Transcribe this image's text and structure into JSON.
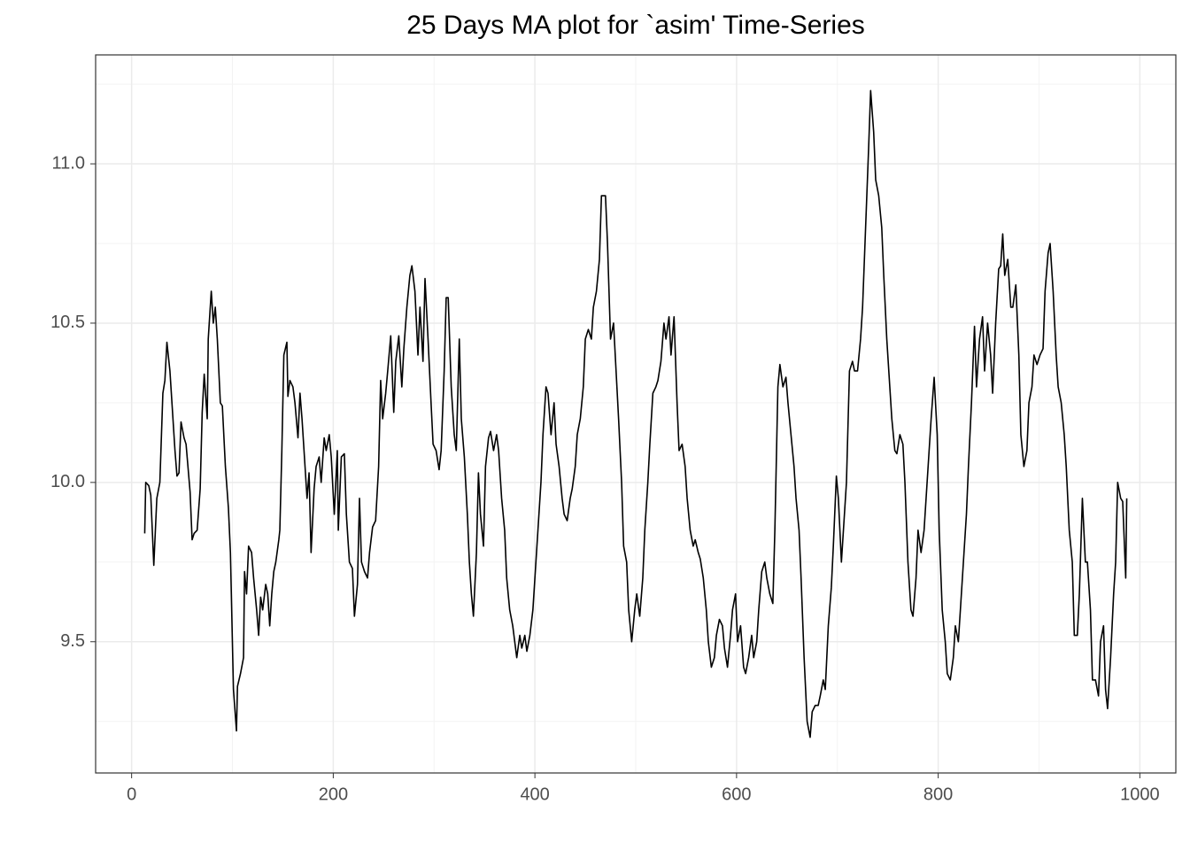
{
  "chart_data": {
    "type": "line",
    "title": "25 Days MA plot for `asim' Time-Series",
    "xlim": [
      -35.7,
      1035.7
    ],
    "ylim": [
      9.088,
      11.342
    ],
    "xticks": [
      0,
      200,
      400,
      600,
      800,
      1000
    ],
    "yticks": [
      9.5,
      {
        "value": 10,
        "label": "10.0"
      },
      10.5,
      {
        "value": 11,
        "label": "11.0"
      }
    ],
    "xminorticks": [
      100,
      300,
      500,
      700,
      900
    ],
    "yminorticks": [
      9.25,
      9.75,
      10.25,
      10.75,
      11.25
    ],
    "grid": true,
    "series": [
      {
        "color": "#000000",
        "x": [
          13,
          14,
          17,
          19,
          22,
          25,
          28,
          31,
          33,
          35,
          38,
          40,
          43,
          45,
          47,
          49,
          52,
          54,
          58,
          60,
          62,
          65,
          68,
          70,
          72,
          75,
          76,
          79,
          81,
          83,
          85,
          88,
          90,
          93,
          96,
          98,
          101,
          104,
          105,
          108,
          111,
          112,
          114,
          116,
          119,
          121,
          124,
          126,
          128,
          130,
          133,
          135,
          137,
          139,
          141,
          143,
          146,
          147,
          149,
          151,
          154,
          155,
          157,
          160,
          162,
          165,
          167,
          169,
          172,
          174,
          176,
          178,
          181,
          183,
          186,
          188,
          191,
          193,
          196,
          198,
          201,
          204,
          205,
          208,
          211,
          213,
          216,
          219,
          221,
          224,
          226,
          228,
          231,
          234,
          236,
          239,
          242,
          245,
          247,
          249,
          252,
          254,
          257,
          260,
          262,
          265,
          268,
          270,
          273,
          276,
          278,
          281,
          284,
          286,
          289,
          291,
          294,
          297,
          299,
          302,
          305,
          307,
          310,
          312,
          314,
          317,
          320,
          322,
          325,
          327,
          330,
          333,
          335,
          337,
          339,
          342,
          344,
          346,
          349,
          351,
          354,
          356,
          359,
          362,
          364,
          367,
          370,
          372,
          375,
          378,
          380,
          382,
          385,
          387,
          390,
          392,
          395,
          398,
          400,
          403,
          406,
          408,
          411,
          413,
          416,
          419,
          421,
          424,
          427,
          429,
          432,
          435,
          437,
          440,
          442,
          445,
          448,
          450,
          453,
          456,
          458,
          461,
          464,
          466,
          470,
          472,
          475,
          478,
          480,
          483,
          486,
          488,
          491,
          493,
          496,
          499,
          501,
          504,
          507,
          509,
          512,
          514,
          517,
          520,
          522,
          525,
          528,
          530,
          533,
          535,
          538,
          541,
          543,
          546,
          549,
          551,
          554,
          557,
          559,
          562,
          564,
          567,
          570,
          572,
          575,
          578,
          580,
          583,
          586,
          588,
          591,
          594,
          596,
          599,
          601,
          604,
          607,
          609,
          612,
          615,
          617,
          620,
          622,
          625,
          628,
          630,
          633,
          636,
          638,
          641,
          643,
          646,
          649,
          651,
          654,
          657,
          659,
          662,
          664,
          667,
          670,
          673,
          675,
          678,
          681,
          683,
          686,
          688,
          691,
          694,
          696,
          699,
          701,
          704,
          707,
          709,
          712,
          715,
          717,
          720,
          723,
          725,
          728,
          731,
          733,
          736,
          738,
          741,
          744,
          746,
          749,
          752,
          754,
          757,
          759,
          762,
          765,
          767,
          770,
          773,
          775,
          778,
          780,
          783,
          786,
          788,
          791,
          793,
          796,
          799,
          801,
          804,
          807,
          809,
          812,
          815,
          817,
          820,
          822,
          825,
          828,
          830,
          833,
          836,
          838,
          841,
          844,
          846,
          849,
          852,
          854,
          857,
          860,
          862,
          864,
          866,
          869,
          872,
          874,
          877,
          880,
          882,
          885,
          888,
          890,
          893,
          895,
          898,
          901,
          904,
          906,
          909,
          911,
          914,
          917,
          919,
          922,
          925,
          927,
          930,
          933,
          935,
          938,
          940,
          943,
          946,
          948,
          951,
          953,
          956,
          959,
          961,
          964,
          966,
          968,
          971,
          974,
          976,
          978,
          981,
          983,
          986,
          987
        ],
        "values": [
          9.84,
          10.0,
          9.99,
          9.96,
          9.74,
          9.95,
          10.0,
          10.28,
          10.32,
          10.44,
          10.35,
          10.25,
          10.1,
          10.02,
          10.03,
          10.19,
          10.14,
          10.12,
          9.97,
          9.82,
          9.84,
          9.85,
          9.98,
          10.22,
          10.34,
          10.2,
          10.45,
          10.6,
          10.5,
          10.55,
          10.45,
          10.25,
          10.24,
          10.05,
          9.92,
          9.78,
          9.35,
          9.22,
          9.36,
          9.4,
          9.45,
          9.72,
          9.65,
          9.8,
          9.78,
          9.7,
          9.6,
          9.52,
          9.64,
          9.6,
          9.68,
          9.65,
          9.55,
          9.65,
          9.72,
          9.75,
          9.82,
          9.85,
          10.1,
          10.4,
          10.44,
          10.27,
          10.32,
          10.3,
          10.25,
          10.14,
          10.28,
          10.2,
          10.05,
          9.95,
          10.03,
          9.78,
          9.98,
          10.05,
          10.08,
          10.0,
          10.14,
          10.1,
          10.15,
          10.08,
          9.9,
          10.1,
          9.85,
          10.08,
          10.09,
          9.9,
          9.75,
          9.73,
          9.58,
          9.68,
          9.95,
          9.75,
          9.72,
          9.7,
          9.78,
          9.86,
          9.88,
          10.05,
          10.32,
          10.2,
          10.28,
          10.35,
          10.46,
          10.22,
          10.38,
          10.46,
          10.3,
          10.42,
          10.55,
          10.65,
          10.68,
          10.6,
          10.4,
          10.55,
          10.38,
          10.64,
          10.45,
          10.25,
          10.12,
          10.1,
          10.04,
          10.1,
          10.35,
          10.58,
          10.58,
          10.3,
          10.15,
          10.1,
          10.45,
          10.2,
          10.08,
          9.9,
          9.75,
          9.65,
          9.58,
          9.78,
          10.03,
          9.9,
          9.8,
          10.05,
          10.14,
          10.16,
          10.1,
          10.15,
          10.1,
          9.95,
          9.85,
          9.7,
          9.6,
          9.55,
          9.5,
          9.45,
          9.52,
          9.48,
          9.52,
          9.47,
          9.52,
          9.6,
          9.7,
          9.85,
          10.0,
          10.15,
          10.3,
          10.28,
          10.15,
          10.25,
          10.12,
          10.05,
          9.95,
          9.9,
          9.88,
          9.95,
          9.98,
          10.05,
          10.15,
          10.2,
          10.3,
          10.45,
          10.48,
          10.45,
          10.55,
          10.6,
          10.7,
          10.9,
          10.9,
          10.75,
          10.45,
          10.5,
          10.38,
          10.2,
          10.0,
          9.8,
          9.75,
          9.6,
          9.5,
          9.6,
          9.65,
          9.58,
          9.7,
          9.85,
          10.0,
          10.12,
          10.28,
          10.3,
          10.32,
          10.38,
          10.5,
          10.45,
          10.52,
          10.4,
          10.52,
          10.25,
          10.1,
          10.12,
          10.05,
          9.95,
          9.85,
          9.8,
          9.82,
          9.78,
          9.76,
          9.7,
          9.6,
          9.5,
          9.42,
          9.45,
          9.52,
          9.57,
          9.55,
          9.48,
          9.42,
          9.52,
          9.6,
          9.65,
          9.5,
          9.55,
          9.42,
          9.4,
          9.45,
          9.52,
          9.45,
          9.5,
          9.6,
          9.72,
          9.75,
          9.7,
          9.65,
          9.62,
          9.85,
          10.3,
          10.37,
          10.3,
          10.33,
          10.25,
          10.15,
          10.05,
          9.95,
          9.85,
          9.7,
          9.45,
          9.25,
          9.2,
          9.28,
          9.3,
          9.3,
          9.33,
          9.38,
          9.35,
          9.55,
          9.67,
          9.8,
          10.02,
          9.95,
          9.75,
          9.9,
          10.0,
          10.35,
          10.38,
          10.35,
          10.35,
          10.45,
          10.55,
          10.8,
          11.05,
          11.23,
          11.1,
          10.95,
          10.9,
          10.8,
          10.65,
          10.45,
          10.3,
          10.2,
          10.1,
          10.09,
          10.15,
          10.12,
          10.0,
          9.75,
          9.6,
          9.58,
          9.7,
          9.85,
          9.78,
          9.85,
          9.95,
          10.1,
          10.2,
          10.33,
          10.15,
          9.85,
          9.6,
          9.5,
          9.4,
          9.38,
          9.45,
          9.55,
          9.5,
          9.6,
          9.75,
          9.9,
          10.05,
          10.25,
          10.49,
          10.3,
          10.45,
          10.52,
          10.35,
          10.5,
          10.4,
          10.28,
          10.5,
          10.67,
          10.68,
          10.78,
          10.65,
          10.7,
          10.55,
          10.55,
          10.62,
          10.4,
          10.15,
          10.05,
          10.1,
          10.25,
          10.3,
          10.4,
          10.37,
          10.4,
          10.42,
          10.6,
          10.72,
          10.75,
          10.6,
          10.4,
          10.3,
          10.25,
          10.15,
          10.05,
          9.85,
          9.75,
          9.52,
          9.52,
          9.65,
          9.95,
          9.75,
          9.75,
          9.6,
          9.38,
          9.38,
          9.33,
          9.5,
          9.55,
          9.35,
          9.29,
          9.45,
          9.65,
          9.75,
          10.0,
          9.95,
          9.94,
          9.7,
          9.95
        ]
      }
    ]
  }
}
